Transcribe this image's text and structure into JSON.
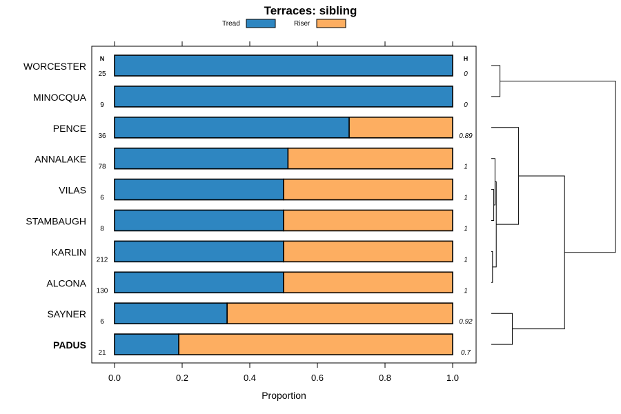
{
  "chart_data": {
    "type": "bar",
    "stacked": true,
    "orientation": "horizontal",
    "title": "Terraces: sibling",
    "xlabel": "Proportion",
    "xlim": [
      0,
      1
    ],
    "x_ticks": [
      "0.0",
      "0.2",
      "0.4",
      "0.6",
      "0.8",
      "1.0"
    ],
    "legend": [
      {
        "name": "Tread",
        "color": "#2e86c1"
      },
      {
        "name": "Riser",
        "color": "#fdae61"
      }
    ],
    "n_header": "N",
    "h_header": "H",
    "categories": [
      "WORCESTER",
      "MINOCQUA",
      "PENCE",
      "ANNALAKE",
      "VILAS",
      "STAMBAUGH",
      "KARLIN",
      "ALCONA",
      "SAYNER",
      "PADUS"
    ],
    "highlighted": "PADUS",
    "n": [
      "25",
      "9",
      "36",
      "78",
      "6",
      "8",
      "212",
      "130",
      "6",
      "21"
    ],
    "h": [
      "0",
      "0",
      "0.89",
      "1",
      "1",
      "1",
      "1",
      "1",
      "0.92",
      "0.7"
    ],
    "series": [
      {
        "name": "Tread",
        "values": [
          1.0,
          1.0,
          0.694,
          0.513,
          0.5,
          0.5,
          0.5,
          0.5,
          0.333,
          0.19
        ]
      },
      {
        "name": "Riser",
        "values": [
          0.0,
          0.0,
          0.306,
          0.487,
          0.5,
          0.5,
          0.5,
          0.5,
          0.667,
          0.81
        ]
      }
    ],
    "dendrogram": {
      "note": "Hierarchical clustering of categories (leaf indices match categories order); heights in arbitrary distance units",
      "max_height": 1.0,
      "merges": [
        {
          "id": "c1",
          "left": 4,
          "right": 5,
          "height": 0.02
        },
        {
          "id": "c2",
          "left": 6,
          "right": 7,
          "height": 0.01
        },
        {
          "id": "c3",
          "left": 3,
          "right": "c1",
          "height": 0.03
        },
        {
          "id": "c4",
          "left": "c3",
          "right": "c2",
          "height": 0.04
        },
        {
          "id": "c5",
          "left": 2,
          "right": "c4",
          "height": 0.22
        },
        {
          "id": "c6",
          "left": 0,
          "right": 1,
          "height": 0.07
        },
        {
          "id": "c7",
          "left": 8,
          "right": 9,
          "height": 0.17
        },
        {
          "id": "c8",
          "left": "c5",
          "right": "c7",
          "height": 0.59
        },
        {
          "id": "c9",
          "left": "c6",
          "right": "c8",
          "height": 1.0
        }
      ]
    }
  }
}
